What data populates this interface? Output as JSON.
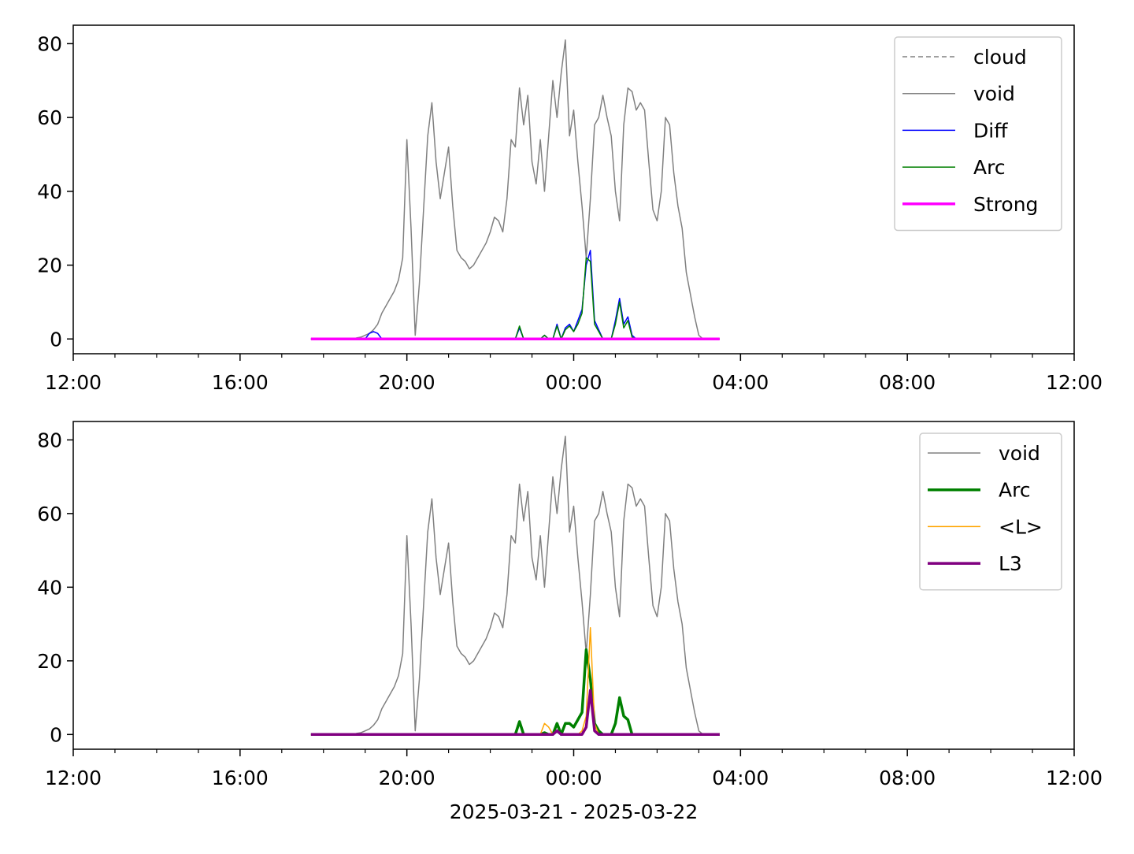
{
  "chart_data": [
    {
      "type": "line",
      "x": [
        5.7,
        5.8,
        5.9,
        6.0,
        6.1,
        6.2,
        6.3,
        6.4,
        6.5,
        6.6,
        6.7,
        6.8,
        6.9,
        7.0,
        7.1,
        7.2,
        7.3,
        7.4,
        7.5,
        7.6,
        7.7,
        7.8,
        7.9,
        8.0,
        8.1,
        8.2,
        8.3,
        8.4,
        8.5,
        8.6,
        8.7,
        8.8,
        8.9,
        9.0,
        9.1,
        9.2,
        9.3,
        9.4,
        9.5,
        9.6,
        9.7,
        9.8,
        9.9,
        10.0,
        10.1,
        10.2,
        10.3,
        10.4,
        10.5,
        10.6,
        10.7,
        10.8,
        10.9,
        11.0,
        11.1,
        11.2,
        11.3,
        11.4,
        11.5,
        11.6,
        11.7,
        11.8,
        11.9,
        12.0,
        12.1,
        12.2,
        12.3,
        12.4,
        12.5,
        12.6,
        12.7,
        12.8,
        12.9,
        13.0,
        13.1,
        13.2,
        13.3,
        13.4,
        13.5,
        13.6,
        13.7,
        13.8,
        13.9,
        14.0,
        14.1,
        14.2,
        14.3,
        14.4,
        14.5,
        14.6,
        14.7,
        14.8,
        14.9,
        15.0,
        15.1,
        15.2,
        15.3,
        15.4,
        15.5
      ],
      "xlim": [
        0,
        24
      ],
      "xticks": [
        {
          "value": 0,
          "label": "12:00"
        },
        {
          "value": 4,
          "label": "16:00"
        },
        {
          "value": 8,
          "label": "20:00"
        },
        {
          "value": 12,
          "label": "00:00"
        },
        {
          "value": 16,
          "label": "04:00"
        },
        {
          "value": 20,
          "label": "08:00"
        },
        {
          "value": 24,
          "label": "12:00"
        }
      ],
      "xminorticks": [
        1,
        2,
        3,
        5,
        6,
        7,
        9,
        10,
        11,
        13,
        14,
        15,
        17,
        18,
        19,
        21,
        22,
        23
      ],
      "ylim": [
        -4,
        85
      ],
      "yticks": [
        0,
        20,
        40,
        60,
        80
      ],
      "legend": "upper right",
      "series": [
        {
          "name": "cloud",
          "color": "#808080",
          "width": 1.5,
          "dash": true,
          "values": [
            null,
            null,
            null,
            null,
            null,
            null,
            null,
            null,
            null,
            null,
            null,
            null,
            null,
            null,
            null,
            null,
            null,
            null,
            null,
            null,
            null,
            null,
            null,
            null,
            null,
            null,
            null,
            null,
            null,
            null,
            null,
            null,
            null,
            null,
            null,
            null,
            null,
            null,
            null,
            null,
            null,
            null,
            null,
            null,
            null,
            null,
            null,
            null,
            null,
            null,
            null,
            null,
            null,
            null,
            null,
            null,
            null,
            null,
            null,
            null,
            null,
            null,
            null,
            null,
            null,
            null,
            null,
            null,
            null,
            null,
            null,
            null,
            null,
            null,
            null,
            null,
            null,
            null,
            null,
            null,
            null,
            null,
            null,
            null,
            null,
            null,
            null,
            null,
            null,
            null,
            null,
            null,
            null,
            null,
            null,
            null,
            null,
            null,
            null
          ]
        },
        {
          "name": "void",
          "color": "#808080",
          "width": 1.5,
          "values": [
            0,
            0,
            0,
            0,
            0,
            0,
            0,
            0,
            0,
            0,
            0,
            0.3,
            0.5,
            1,
            1.5,
            2.5,
            4,
            7,
            9,
            11,
            13,
            16,
            22,
            54,
            30,
            1,
            15,
            35,
            55,
            64,
            48,
            38,
            45,
            52,
            36,
            24,
            22,
            21,
            19,
            20,
            22,
            24,
            26,
            29,
            33,
            32,
            29,
            38,
            54,
            52,
            68,
            58,
            66,
            48,
            42,
            54,
            40,
            55,
            70,
            60,
            72,
            81,
            55,
            62,
            48,
            36,
            22,
            38,
            58,
            60,
            66,
            60,
            55,
            40,
            32,
            58,
            68,
            67,
            62,
            64,
            62,
            48,
            35,
            32,
            40,
            60,
            58,
            45,
            36,
            30,
            18,
            12,
            6,
            1,
            0,
            0,
            0,
            0,
            0
          ]
        },
        {
          "name": "Diff",
          "color": "#0000ff",
          "width": 1.5,
          "values": [
            0,
            0,
            0,
            0,
            0,
            0,
            0,
            0,
            0,
            0,
            0,
            0,
            0,
            0,
            1.5,
            2,
            1.5,
            0,
            0,
            0,
            0,
            0,
            0,
            0,
            0,
            0,
            0,
            0,
            0,
            0,
            0,
            0,
            0,
            0,
            0,
            0,
            0,
            0,
            0,
            0,
            0,
            0,
            0,
            0,
            0,
            0,
            0,
            0,
            0,
            0,
            3,
            0,
            0,
            0,
            0,
            0,
            1,
            0,
            0,
            4,
            0,
            3,
            4,
            2,
            5,
            8,
            20,
            24,
            5,
            2.5,
            0,
            0,
            0,
            5,
            11,
            4,
            6,
            1,
            0,
            0,
            0,
            0,
            0,
            0,
            0,
            0,
            0,
            0,
            0,
            0,
            0,
            0,
            0,
            0,
            0,
            0,
            0,
            0,
            0
          ]
        },
        {
          "name": "Arc",
          "color": "#008000",
          "width": 1.5,
          "values": [
            0,
            0,
            0,
            0,
            0,
            0,
            0,
            0,
            0,
            0,
            0,
            0,
            0,
            0,
            0,
            0,
            0,
            0,
            0,
            0,
            0,
            0,
            0,
            0,
            0,
            0,
            0,
            0,
            0,
            0,
            0,
            0,
            0,
            0,
            0,
            0,
            0,
            0,
            0,
            0,
            0,
            0,
            0,
            0,
            0,
            0,
            0,
            0,
            0,
            0,
            3.5,
            0,
            0,
            0,
            0,
            0,
            1,
            0,
            0,
            3.5,
            0,
            2.5,
            3.5,
            2,
            4,
            7,
            22,
            21,
            4,
            2,
            0,
            0,
            0,
            4,
            10,
            3,
            5,
            0.5,
            0,
            0,
            0,
            0,
            0,
            0,
            0,
            0,
            0,
            0,
            0,
            0,
            0,
            0,
            0,
            0,
            0,
            0,
            0,
            0,
            0
          ]
        },
        {
          "name": "Strong",
          "color": "#ff00ff",
          "width": 3.5,
          "values": [
            0,
            0,
            0,
            0,
            0,
            0,
            0,
            0,
            0,
            0,
            0,
            0,
            0,
            0,
            0,
            0,
            0,
            0,
            0,
            0,
            0,
            0,
            0,
            0,
            0,
            0,
            0,
            0,
            0,
            0,
            0,
            0,
            0,
            0,
            0,
            0,
            0,
            0,
            0,
            0,
            0,
            0,
            0,
            0,
            0,
            0,
            0,
            0,
            0,
            0,
            0,
            0,
            0,
            0,
            0,
            0,
            0,
            0,
            0,
            0,
            0,
            0,
            0,
            0,
            0,
            0,
            0,
            0,
            0,
            0,
            0,
            0,
            0,
            0,
            0,
            0,
            0,
            0,
            0,
            0,
            0,
            0,
            0,
            0,
            0,
            0,
            0,
            0,
            0,
            0,
            0,
            0,
            0,
            0,
            0,
            0,
            0,
            0,
            0
          ]
        }
      ]
    },
    {
      "type": "line",
      "x": [
        5.7,
        5.8,
        5.9,
        6.0,
        6.1,
        6.2,
        6.3,
        6.4,
        6.5,
        6.6,
        6.7,
        6.8,
        6.9,
        7.0,
        7.1,
        7.2,
        7.3,
        7.4,
        7.5,
        7.6,
        7.7,
        7.8,
        7.9,
        8.0,
        8.1,
        8.2,
        8.3,
        8.4,
        8.5,
        8.6,
        8.7,
        8.8,
        8.9,
        9.0,
        9.1,
        9.2,
        9.3,
        9.4,
        9.5,
        9.6,
        9.7,
        9.8,
        9.9,
        10.0,
        10.1,
        10.2,
        10.3,
        10.4,
        10.5,
        10.6,
        10.7,
        10.8,
        10.9,
        11.0,
        11.1,
        11.2,
        11.3,
        11.4,
        11.5,
        11.6,
        11.7,
        11.8,
        11.9,
        12.0,
        12.1,
        12.2,
        12.3,
        12.4,
        12.5,
        12.6,
        12.7,
        12.8,
        12.9,
        13.0,
        13.1,
        13.2,
        13.3,
        13.4,
        13.5,
        13.6,
        13.7,
        13.8,
        13.9,
        14.0,
        14.1,
        14.2,
        14.3,
        14.4,
        14.5,
        14.6,
        14.7,
        14.8,
        14.9,
        15.0,
        15.1,
        15.2,
        15.3,
        15.4,
        15.5
      ],
      "xlim": [
        0,
        24
      ],
      "xticks": [
        {
          "value": 0,
          "label": "12:00"
        },
        {
          "value": 4,
          "label": "16:00"
        },
        {
          "value": 8,
          "label": "20:00"
        },
        {
          "value": 12,
          "label": "00:00"
        },
        {
          "value": 16,
          "label": "04:00"
        },
        {
          "value": 20,
          "label": "08:00"
        },
        {
          "value": 24,
          "label": "12:00"
        }
      ],
      "xminorticks": [
        1,
        2,
        3,
        5,
        6,
        7,
        9,
        10,
        11,
        13,
        14,
        15,
        17,
        18,
        19,
        21,
        22,
        23
      ],
      "xlabel": "2025-03-21 - 2025-03-22",
      "ylim": [
        -4,
        85
      ],
      "yticks": [
        0,
        20,
        40,
        60,
        80
      ],
      "legend": "upper right",
      "series": [
        {
          "name": "void",
          "color": "#808080",
          "width": 1.5,
          "values": [
            0,
            0,
            0,
            0,
            0,
            0,
            0,
            0,
            0,
            0,
            0,
            0.3,
            0.5,
            1,
            1.5,
            2.5,
            4,
            7,
            9,
            11,
            13,
            16,
            22,
            54,
            30,
            1,
            15,
            35,
            55,
            64,
            48,
            38,
            45,
            52,
            36,
            24,
            22,
            21,
            19,
            20,
            22,
            24,
            26,
            29,
            33,
            32,
            29,
            38,
            54,
            52,
            68,
            58,
            66,
            48,
            42,
            54,
            40,
            55,
            70,
            60,
            72,
            81,
            55,
            62,
            48,
            36,
            22,
            38,
            58,
            60,
            66,
            60,
            55,
            40,
            32,
            58,
            68,
            67,
            62,
            64,
            62,
            48,
            35,
            32,
            40,
            60,
            58,
            45,
            36,
            30,
            18,
            12,
            6,
            1,
            0,
            0,
            0,
            0,
            0
          ]
        },
        {
          "name": "Arc",
          "color": "#008000",
          "width": 3.5,
          "values": [
            0,
            0,
            0,
            0,
            0,
            0,
            0,
            0,
            0,
            0,
            0,
            0,
            0,
            0,
            0,
            0,
            0,
            0,
            0,
            0,
            0,
            0,
            0,
            0,
            0,
            0,
            0,
            0,
            0,
            0,
            0,
            0,
            0,
            0,
            0,
            0,
            0,
            0,
            0,
            0,
            0,
            0,
            0,
            0,
            0,
            0,
            0,
            0,
            0,
            0,
            3.5,
            0,
            0,
            0,
            0,
            0,
            0.5,
            0,
            0,
            3,
            0,
            3,
            3,
            2,
            4,
            6,
            23,
            15,
            3,
            1,
            0,
            0,
            0,
            3,
            10,
            5,
            4,
            0,
            0,
            0,
            0,
            0,
            0,
            0,
            0,
            0,
            0,
            0,
            0,
            0,
            0,
            0,
            0,
            0,
            0,
            0,
            0,
            0,
            0
          ]
        },
        {
          "name": "<L>",
          "color": "#ffa500",
          "width": 1.5,
          "values": [
            0,
            0,
            0,
            0,
            0,
            0,
            0,
            0,
            0,
            0,
            0,
            0,
            0,
            0,
            0,
            0,
            0,
            0,
            0,
            0,
            0,
            0,
            0,
            0,
            0,
            0,
            0,
            0,
            0,
            0,
            0,
            0,
            0,
            0,
            0,
            0,
            0,
            0,
            0,
            0,
            0,
            0,
            0,
            0,
            0,
            0,
            0,
            0,
            0,
            0,
            0,
            0,
            0,
            0,
            0,
            0,
            3,
            2,
            0,
            1,
            0,
            0,
            0,
            0,
            0,
            1,
            5,
            29,
            3,
            0,
            0,
            0,
            0,
            0,
            0,
            0,
            0,
            0,
            0,
            0,
            0,
            0,
            0,
            0,
            0,
            0,
            0,
            0,
            0,
            0,
            0,
            0,
            0,
            0,
            0,
            0,
            0,
            0,
            0
          ]
        },
        {
          "name": "L3",
          "color": "#800080",
          "width": 3.5,
          "values": [
            0,
            0,
            0,
            0,
            0,
            0,
            0,
            0,
            0,
            0,
            0,
            0,
            0,
            0,
            0,
            0,
            0,
            0,
            0,
            0,
            0,
            0,
            0,
            0,
            0,
            0,
            0,
            0,
            0,
            0,
            0,
            0,
            0,
            0,
            0,
            0,
            0,
            0,
            0,
            0,
            0,
            0,
            0,
            0,
            0,
            0,
            0,
            0,
            0,
            0,
            0,
            0,
            0,
            0,
            0,
            0,
            0,
            0,
            0,
            1,
            0,
            0,
            0,
            0,
            0,
            0,
            2,
            12,
            1,
            0,
            0,
            0,
            0,
            0,
            0,
            0,
            0,
            0,
            0,
            0,
            0,
            0,
            0,
            0,
            0,
            0,
            0,
            0,
            0,
            0,
            0,
            0,
            0,
            0,
            0,
            0,
            0,
            0,
            0
          ]
        }
      ]
    }
  ]
}
